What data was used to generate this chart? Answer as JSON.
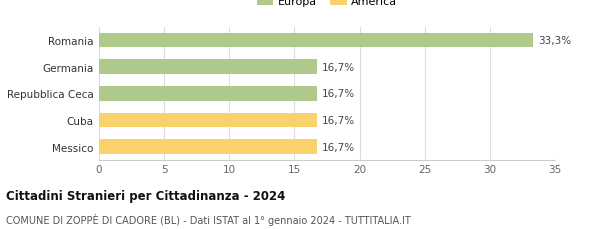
{
  "categories": [
    "Messico",
    "Cuba",
    "Repubblica Ceca",
    "Germania",
    "Romania"
  ],
  "values": [
    16.7,
    16.7,
    16.7,
    16.7,
    33.3
  ],
  "colors": [
    "#f9d26b",
    "#f9d26b",
    "#aec98a",
    "#aec98a",
    "#aec98a"
  ],
  "labels": [
    "16,7%",
    "16,7%",
    "16,7%",
    "16,7%",
    "33,3%"
  ],
  "legend_items": [
    {
      "label": "Europa",
      "color": "#aec98a"
    },
    {
      "label": "America",
      "color": "#f9d26b"
    }
  ],
  "xlim": [
    0,
    35
  ],
  "xticks": [
    0,
    5,
    10,
    15,
    20,
    25,
    30,
    35
  ],
  "title": "Cittadini Stranieri per Cittadinanza - 2024",
  "subtitle": "COMUNE DI ZOPPÈ DI CADORE (BL) - Dati ISTAT al 1° gennaio 2024 - TUTTITALIA.IT",
  "title_fontsize": 8.5,
  "subtitle_fontsize": 7.0,
  "bar_height": 0.55,
  "background_color": "#ffffff",
  "grid_color": "#dddddd"
}
